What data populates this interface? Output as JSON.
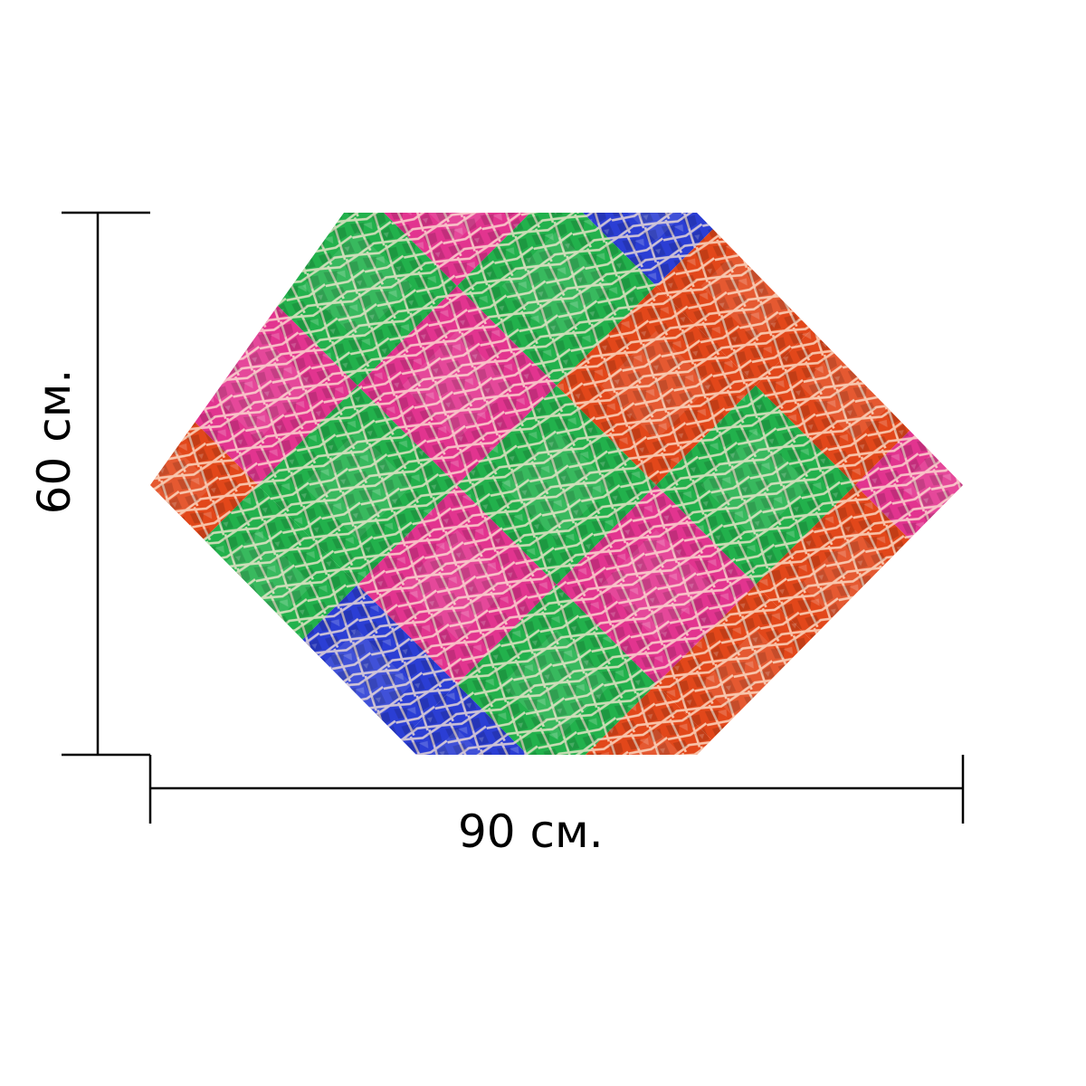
{
  "product": {
    "shape": "hexagon",
    "pattern": "mosaic-diamond-tiles",
    "tile_colors": {
      "red-orange": "#e2471a",
      "green": "#22b14c",
      "pink": "#e2348f",
      "blue": "#2b3ed4"
    }
  },
  "dimensions": {
    "width_label": "90 см.",
    "height_label": "60 см."
  }
}
